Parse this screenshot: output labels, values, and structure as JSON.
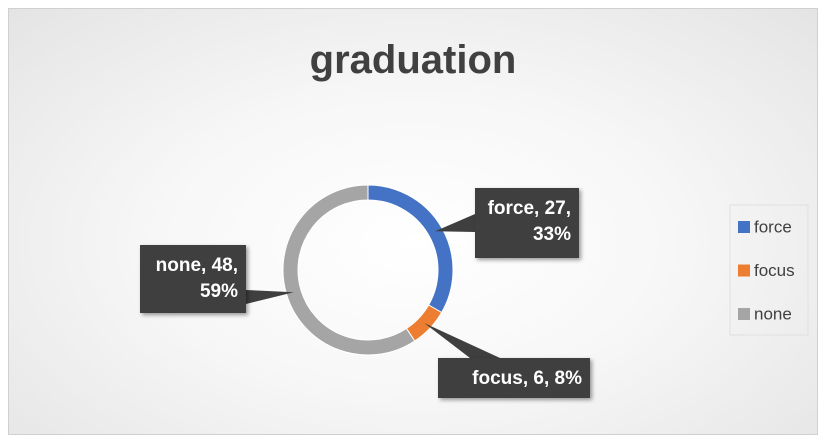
{
  "chart_data": {
    "type": "donut",
    "title": "graduation",
    "categories": [
      "force",
      "focus",
      "none"
    ],
    "values": [
      27,
      6,
      48
    ],
    "value_labels": [
      "force, 27, 33%",
      "focus, 6, 8%",
      "none, 48, 59%"
    ],
    "colors": [
      "#4472c4",
      "#ed7d31",
      "#a5a5a5"
    ],
    "legend": "right"
  }
}
